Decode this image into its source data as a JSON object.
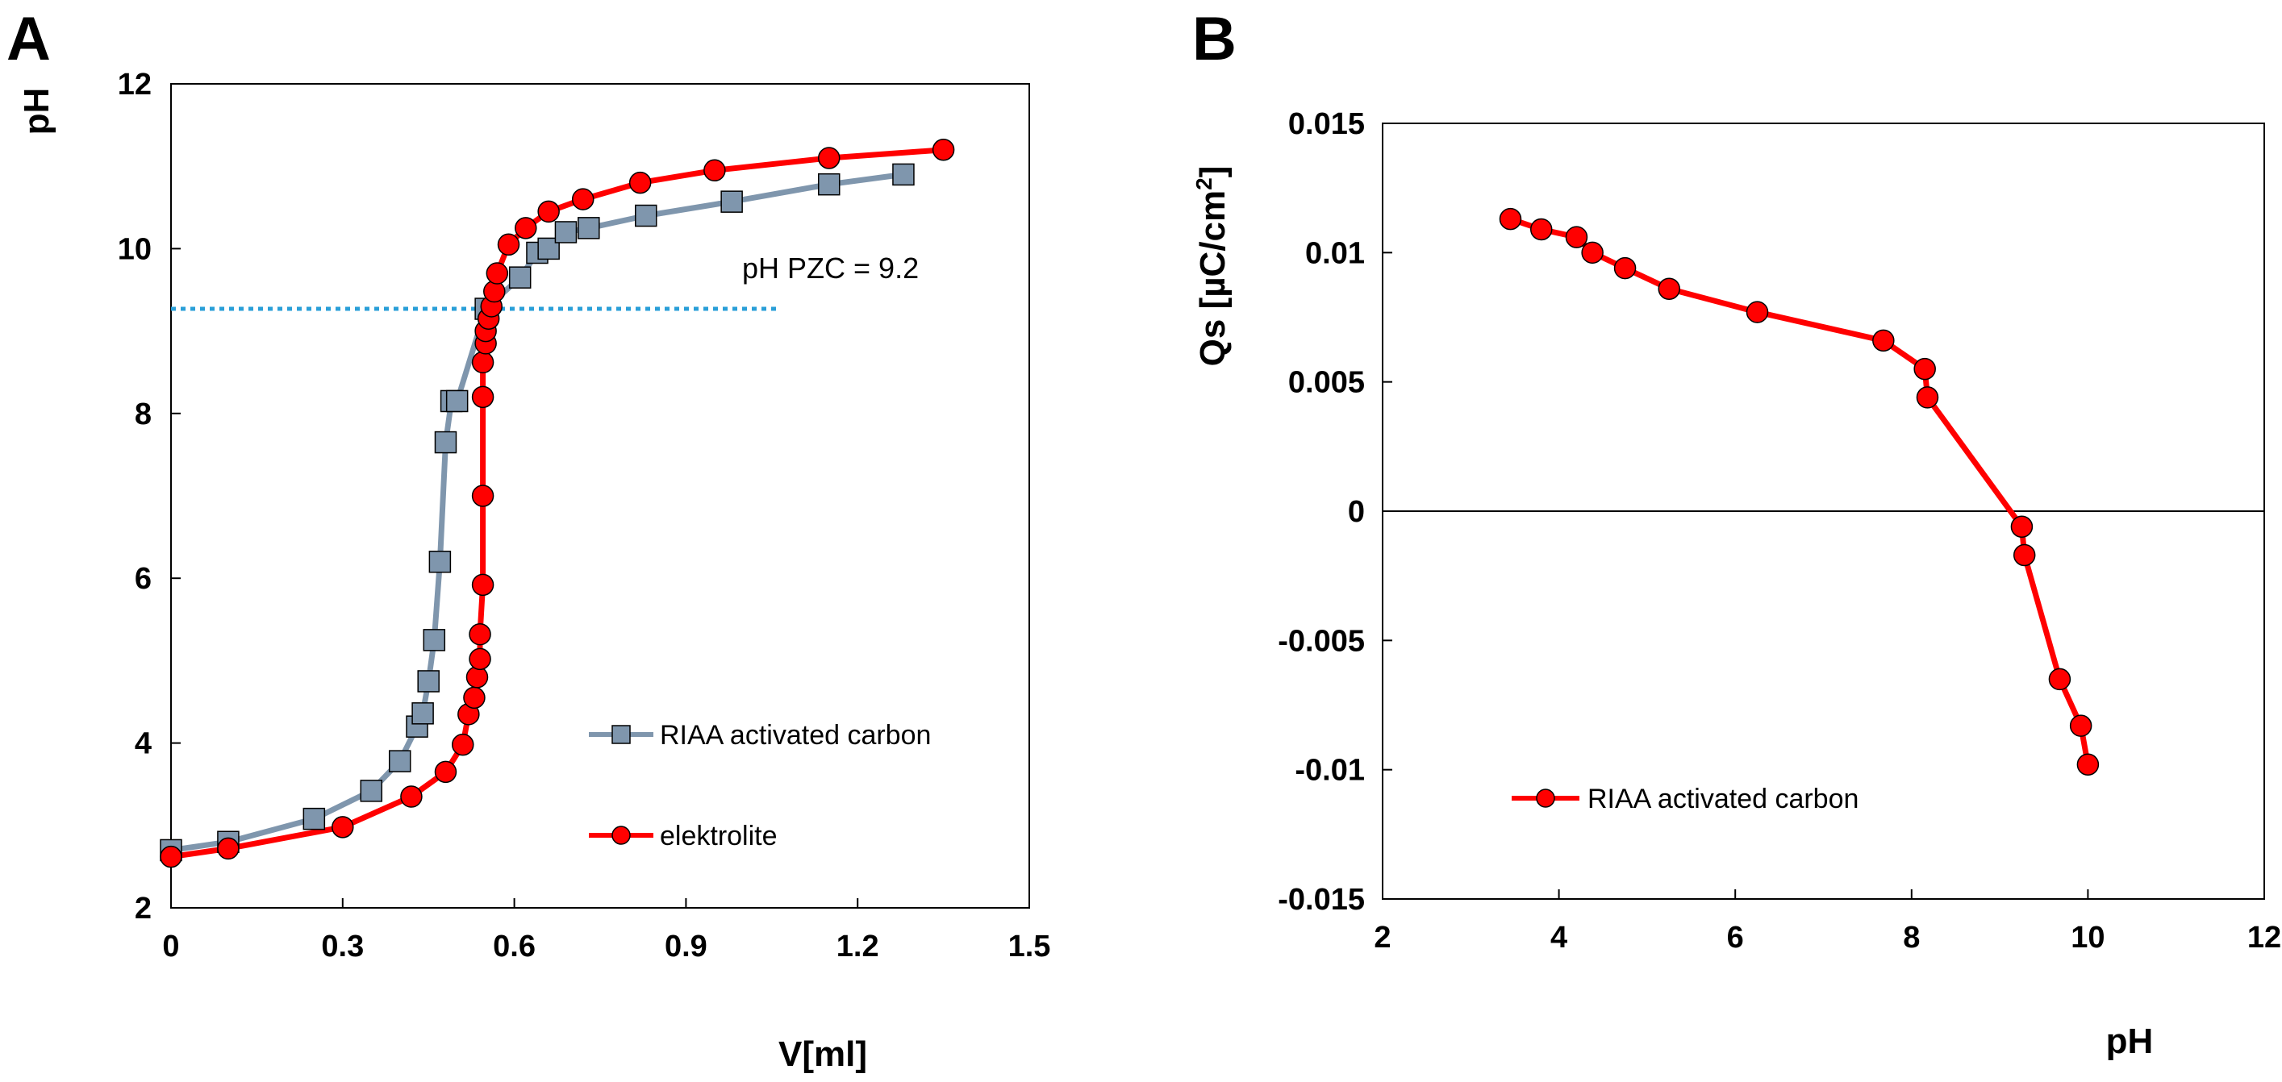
{
  "chart_data": [
    {
      "panel": "A",
      "type": "line",
      "title": "",
      "xlabel": "V[ml]",
      "ylabel": "pH",
      "xlim": [
        0,
        1.5
      ],
      "ylim": [
        2,
        12
      ],
      "x_ticks": [
        "0",
        "0.3",
        "0.6",
        "0.9",
        "1.2",
        "1.5"
      ],
      "y_ticks": [
        "2",
        "4",
        "6",
        "8",
        "10",
        "12"
      ],
      "grid": false,
      "annotation": "pH PZC = 9.2",
      "reference_line": {
        "y": 9.27,
        "x_range": [
          0,
          1.06
        ],
        "style": "dotted",
        "color": "#2a9fd8"
      },
      "series": [
        {
          "name": "RIAA activated carbon",
          "marker": "square",
          "color": "#7f96ad",
          "x": [
            0,
            0.1,
            0.25,
            0.35,
            0.4,
            0.43,
            0.44,
            0.45,
            0.46,
            0.47,
            0.48,
            0.49,
            0.5,
            0.55,
            0.61,
            0.64,
            0.66,
            0.69,
            0.73,
            0.83,
            0.98,
            1.15,
            1.28
          ],
          "y": [
            2.7,
            2.8,
            3.08,
            3.42,
            3.78,
            4.2,
            4.36,
            4.75,
            5.25,
            6.2,
            7.65,
            8.15,
            8.15,
            9.27,
            9.65,
            9.95,
            10.0,
            10.2,
            10.25,
            10.4,
            10.57,
            10.78,
            10.9
          ]
        },
        {
          "name": "elektrolite",
          "marker": "circle",
          "color": "#ff0000",
          "x": [
            0,
            0.1,
            0.3,
            0.42,
            0.48,
            0.51,
            0.52,
            0.53,
            0.535,
            0.54,
            0.54,
            0.545,
            0.545,
            0.545,
            0.545,
            0.55,
            0.55,
            0.555,
            0.56,
            0.565,
            0.57,
            0.59,
            0.62,
            0.66,
            0.72,
            0.82,
            0.95,
            1.15,
            1.35
          ],
          "y": [
            2.62,
            2.72,
            2.98,
            3.35,
            3.65,
            3.98,
            4.35,
            4.55,
            4.8,
            5.02,
            5.32,
            5.92,
            7.0,
            8.2,
            8.62,
            8.85,
            9.0,
            9.15,
            9.3,
            9.48,
            9.7,
            10.05,
            10.25,
            10.45,
            10.6,
            10.8,
            10.95,
            11.1,
            11.2
          ]
        }
      ]
    },
    {
      "panel": "B",
      "type": "line",
      "title": "",
      "xlabel": "pH",
      "ylabel": "Qs [µC/cm²]",
      "ylabel_main": "Qs [µC/cm",
      "ylabel_sup": "2",
      "ylabel_end": "]",
      "xlim": [
        2,
        12
      ],
      "ylim": [
        -0.015,
        0.015
      ],
      "x_ticks": [
        "2",
        "4",
        "6",
        "8",
        "10",
        "12"
      ],
      "y_ticks": [
        "0.015",
        "0.01",
        "0.005",
        "0",
        "-0.005",
        "-0.01",
        "-0.015"
      ],
      "grid": false,
      "series": [
        {
          "name": "RIAA activated carbon",
          "marker": "circle",
          "color": "#ff0000",
          "x": [
            3.45,
            3.8,
            4.2,
            4.38,
            4.75,
            5.25,
            6.25,
            7.68,
            8.15,
            8.18,
            9.25,
            9.28,
            9.68,
            9.92,
            10.0
          ],
          "y": [
            0.0113,
            0.0109,
            0.0106,
            0.01,
            0.0094,
            0.0086,
            0.0077,
            0.0066,
            0.0055,
            0.0044,
            -0.0006,
            -0.0017,
            -0.0065,
            -0.0083,
            -0.0098
          ]
        }
      ]
    }
  ]
}
